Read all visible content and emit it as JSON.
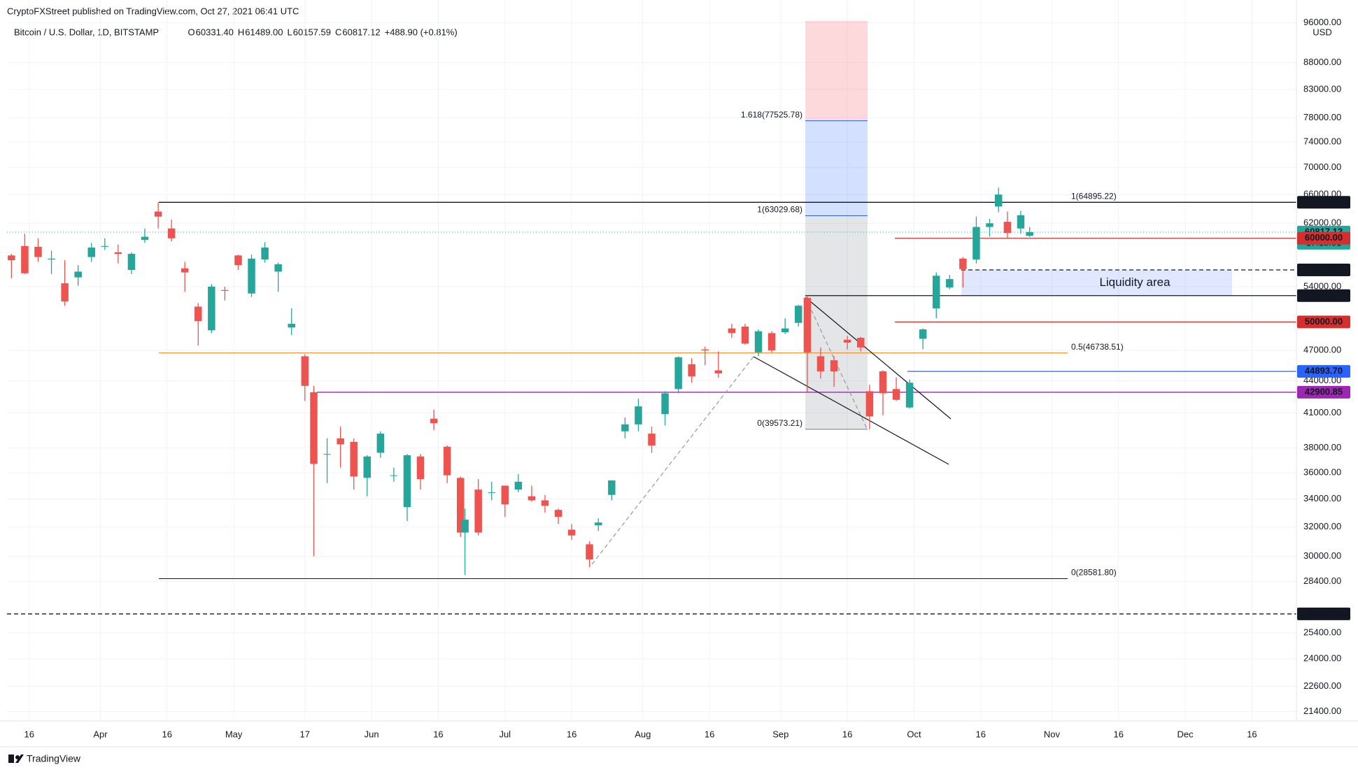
{
  "chart_data": {
    "type": "candlestick",
    "publisher": "CryptoFXStreet published on TradingView.com, Oct 27, 2021 06:41 UTC",
    "title": "Bitcoin / U.S. Dollar, 1D, BITSTAMP",
    "ohlc_header": [
      {
        "key": "O",
        "text": "60331.40"
      },
      {
        "key": "H",
        "text": "61489.00"
      },
      {
        "key": "L",
        "text": "60157.59"
      },
      {
        "key": "C",
        "text": "60817.12"
      },
      {
        "key": "",
        "text": "+488.90 (+0.81%)"
      }
    ],
    "currency": "USD",
    "footer": "TradingView",
    "log_scale": true,
    "grid": true,
    "up_color": "#26a69a",
    "down_color": "#ef5350",
    "xlim": [
      "2021-03-11",
      "2021-12-26"
    ],
    "xticks": [
      {
        "value": "2021-03-16",
        "label": "16"
      },
      {
        "value": "2021-04-01",
        "label": "Apr"
      },
      {
        "value": "2021-04-16",
        "label": "16"
      },
      {
        "value": "2021-05-01",
        "label": "May"
      },
      {
        "value": "2021-05-17",
        "label": "17"
      },
      {
        "value": "2021-06-01",
        "label": "Jun"
      },
      {
        "value": "2021-06-16",
        "label": "16"
      },
      {
        "value": "2021-07-01",
        "label": "Jul"
      },
      {
        "value": "2021-07-16",
        "label": "16"
      },
      {
        "value": "2021-08-01",
        "label": "Aug"
      },
      {
        "value": "2021-08-16",
        "label": "16"
      },
      {
        "value": "2021-09-01",
        "label": "Sep"
      },
      {
        "value": "2021-09-16",
        "label": "16"
      },
      {
        "value": "2021-10-01",
        "label": "Oct"
      },
      {
        "value": "2021-10-16",
        "label": "16"
      },
      {
        "value": "2021-11-01",
        "label": "Nov"
      },
      {
        "value": "2021-11-16",
        "label": "16"
      },
      {
        "value": "2021-12-01",
        "label": "Dec"
      },
      {
        "value": "2021-12-16",
        "label": "16"
      }
    ],
    "ylim": [
      20960,
      96340
    ],
    "yticks": [
      {
        "value": 96000,
        "label": "96000.00"
      },
      {
        "value": 88000,
        "label": "88000.00"
      },
      {
        "value": 83000,
        "label": "83000.00"
      },
      {
        "value": 78000,
        "label": "78000.00"
      },
      {
        "value": 74000,
        "label": "74000.00"
      },
      {
        "value": 70000,
        "label": "70000.00"
      },
      {
        "value": 66000,
        "label": "66000.00"
      },
      {
        "value": 62000,
        "label": "62000.00"
      },
      {
        "value": 54000,
        "label": "54000.00"
      },
      {
        "value": 47000,
        "label": "47000.00"
      },
      {
        "value": 44000,
        "label": "44000.00"
      },
      {
        "value": 41000,
        "label": "41000.00"
      },
      {
        "value": 38000,
        "label": "38000.00"
      },
      {
        "value": 36000,
        "label": "36000.00"
      },
      {
        "value": 34000,
        "label": "34000.00"
      },
      {
        "value": 32000,
        "label": "32000.00"
      },
      {
        "value": 30000,
        "label": "30000.00"
      },
      {
        "value": 28400,
        "label": "28400.00"
      },
      {
        "value": 25400,
        "label": "25400.00"
      },
      {
        "value": 24000,
        "label": "24000.00"
      },
      {
        "value": 22600,
        "label": "22600.00"
      },
      {
        "value": 21400,
        "label": "21400.00"
      }
    ],
    "x": [
      "2021-03-12",
      "2021-03-15",
      "2021-03-18",
      "2021-03-21",
      "2021-03-24",
      "2021-03-27",
      "2021-03-30",
      "2021-04-02",
      "2021-04-05",
      "2021-04-08",
      "2021-04-11",
      "2021-04-14",
      "2021-04-17",
      "2021-04-20",
      "2021-04-23",
      "2021-04-26",
      "2021-04-29",
      "2021-05-02",
      "2021-05-05",
      "2021-05-08",
      "2021-05-11",
      "2021-05-14",
      "2021-05-17",
      "2021-05-19",
      "2021-05-22",
      "2021-05-25",
      "2021-05-28",
      "2021-05-31",
      "2021-06-03",
      "2021-06-06",
      "2021-06-09",
      "2021-06-12",
      "2021-06-15",
      "2021-06-18",
      "2021-06-21",
      "2021-06-22",
      "2021-06-25",
      "2021-06-28",
      "2021-07-01",
      "2021-07-04",
      "2021-07-07",
      "2021-07-10",
      "2021-07-13",
      "2021-07-16",
      "2021-07-20",
      "2021-07-22",
      "2021-07-25",
      "2021-07-28",
      "2021-07-31",
      "2021-08-03",
      "2021-08-06",
      "2021-08-09",
      "2021-08-12",
      "2021-08-15",
      "2021-08-18",
      "2021-08-21",
      "2021-08-24",
      "2021-08-27",
      "2021-08-30",
      "2021-09-02",
      "2021-09-05",
      "2021-09-07",
      "2021-09-10",
      "2021-09-13",
      "2021-09-16",
      "2021-09-19",
      "2021-09-21",
      "2021-09-24",
      "2021-09-27",
      "2021-09-30",
      "2021-10-03",
      "2021-10-06",
      "2021-10-09",
      "2021-10-12",
      "2021-10-15",
      "2021-10-18",
      "2021-10-20",
      "2021-10-22",
      "2021-10-25",
      "2021-10-27"
    ],
    "open": [
      57800,
      59000,
      58900,
      57300,
      54400,
      55100,
      57600,
      58900,
      58200,
      56000,
      59800,
      63600,
      61300,
      56200,
      51700,
      49100,
      53600,
      57800,
      53200,
      57300,
      55800,
      49400,
      46400,
      42900,
      37500,
      38800,
      38500,
      35600,
      37600,
      35800,
      33400,
      37300,
      40500,
      38100,
      35600,
      31600,
      34700,
      34500,
      35000,
      34700,
      34200,
      33900,
      33200,
      31800,
      30800,
      32100,
      34300,
      39400,
      40000,
      39200,
      40900,
      43200,
      45600,
      47100,
      45000,
      49300,
      49500,
      46800,
      48800,
      48900,
      49900,
      52700,
      46400,
      46000,
      48100,
      48300,
      43000,
      44900,
      43200,
      41500,
      48200,
      51500,
      53900,
      57400,
      57300,
      61500,
      64300,
      62200,
      61300,
      60331.4
    ],
    "high": [
      58000,
      60600,
      60000,
      58400,
      57200,
      56600,
      59400,
      60000,
      59200,
      58200,
      61300,
      64895,
      62500,
      57000,
      52100,
      54300,
      54000,
      57900,
      57900,
      59500,
      56900,
      51500,
      46600,
      43500,
      38800,
      39800,
      38800,
      37400,
      39400,
      36400,
      37500,
      37500,
      41300,
      38200,
      35700,
      33300,
      35500,
      35300,
      35000,
      35900,
      35000,
      34300,
      33300,
      32200,
      31000,
      32600,
      35400,
      40600,
      42300,
      39800,
      43000,
      46400,
      46200,
      47400,
      46900,
      49800,
      49800,
      49200,
      49000,
      50400,
      51900,
      52950,
      47300,
      46400,
      48500,
      48400,
      43600,
      45000,
      44300,
      44100,
      49300,
      55700,
      55400,
      57600,
      62900,
      62600,
      67000,
      63600,
      63700,
      61489
    ],
    "low": [
      55000,
      55500,
      57000,
      55500,
      51800,
      54100,
      57000,
      58500,
      56800,
      55500,
      59400,
      61300,
      59600,
      53400,
      47500,
      48800,
      52400,
      56000,
      52800,
      56900,
      53400,
      48600,
      42100,
      30000,
      35200,
      36400,
      34700,
      34200,
      37200,
      35300,
      32400,
      34700,
      39500,
      35200,
      31300,
      28800,
      31400,
      33900,
      32700,
      34500,
      33800,
      33000,
      32200,
      31100,
      29300,
      31700,
      33900,
      38800,
      39400,
      37600,
      39900,
      42800,
      43800,
      45500,
      44300,
      48300,
      47600,
      46400,
      46800,
      48700,
      49500,
      42900,
      44200,
      43400,
      47100,
      46900,
      39573,
      40800,
      42100,
      41400,
      47100,
      50400,
      53700,
      53900,
      56800,
      60200,
      63500,
      60000,
      60600,
      60157.59
    ],
    "close": [
      57200,
      55600,
      57600,
      57400,
      52300,
      55800,
      58800,
      59000,
      58000,
      58000,
      60200,
      62900,
      60000,
      55700,
      50100,
      54000,
      53500,
      56600,
      57400,
      58800,
      56700,
      49800,
      43500,
      36700,
      37500,
      38300,
      35700,
      37300,
      39200,
      35800,
      37400,
      35500,
      40100,
      35800,
      31600,
      32500,
      31600,
      34500,
      33600,
      35300,
      33900,
      33500,
      32700,
      31400,
      29800,
      32300,
      35400,
      40000,
      41600,
      38200,
      42800,
      46300,
      44400,
      47000,
      44700,
      48800,
      47700,
      49000,
      47000,
      49300,
      51800,
      46800,
      44900,
      44900,
      47800,
      47300,
      40700,
      42800,
      42200,
      43800,
      49200,
      55300,
      54900,
      56100,
      61500,
      62000,
      66000,
      60700,
      63100,
      60817.12
    ],
    "price_lines": [
      {
        "value": 64895.22,
        "color": "#131722",
        "style": "solid"
      },
      {
        "value": 60817.12,
        "color": "#26a69a",
        "style": "dotted",
        "countdown": "17:18:01"
      },
      {
        "value": 60000,
        "label": "60000.00",
        "color": "#d32f2f",
        "style": "solid"
      },
      {
        "value": 56004.61,
        "color": "#131722",
        "style": "dashed"
      },
      {
        "value": 52956.47,
        "color": "#131722",
        "style": "solid"
      },
      {
        "value": 50000,
        "label": "50000.00",
        "color": "#d32f2f",
        "style": "solid"
      },
      {
        "value": 44893.7,
        "label": "44893.70",
        "color": "#2962ff",
        "style": "solid"
      },
      {
        "value": 42900.85,
        "color": "#9c27b0",
        "style": "solid"
      },
      {
        "value": 26466.28,
        "color": "#131722",
        "style": "dashed"
      }
    ],
    "fib_retracement": [
      {
        "label": "1(64895.22)",
        "value": 64895.22,
        "color": "#131722"
      },
      {
        "label": "0.5(46738.51)",
        "value": 46738.51,
        "color": "#f57c00"
      },
      {
        "label": "0(28581.80)",
        "value": 28581.8,
        "color": "#131722"
      }
    ],
    "fib_extension": [
      {
        "label": "1.618(77525.78)",
        "value": 77525.78,
        "color": "#2962ff"
      },
      {
        "label": "1(63029.68)",
        "value": 63029.68,
        "color": "#787b86"
      },
      {
        "label": "0(39573.21)",
        "value": 39573.21,
        "color": "#787b86"
      }
    ],
    "zone_label": "Liquidity area"
  }
}
